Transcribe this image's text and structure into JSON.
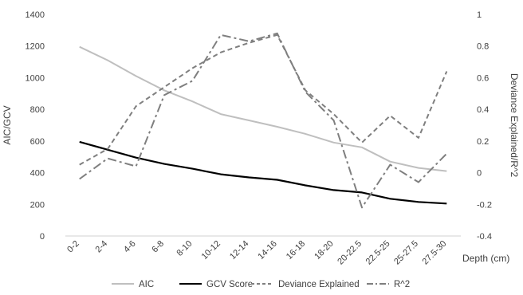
{
  "chart_data": {
    "type": "line",
    "categories": [
      "0-2",
      "2-4",
      "4-6",
      "6-8",
      "8-10",
      "10-12",
      "12-14",
      "14-16",
      "16-18",
      "18-20",
      "20-22.5",
      "22.5-25",
      "25-27.5",
      "27.5-30"
    ],
    "xlabel": "Depth (cm)",
    "ylabel": "AIC/GCV",
    "y2label": "Deviance Explained/R^2",
    "ylim": [
      0,
      1400
    ],
    "y2lim": [
      -0.4,
      1
    ],
    "yticks": [
      "0",
      "200",
      "400",
      "600",
      "800",
      "1000",
      "1200",
      "1400"
    ],
    "y2ticks": [
      "-0.4",
      "-0.2",
      "0",
      "0.2",
      "0.4",
      "0.6",
      "0.8",
      "1"
    ],
    "grid": false,
    "legend_position": "bottom",
    "series": [
      {
        "name": "AIC",
        "axis": "left",
        "color": "#bfbfbf",
        "dash": "solid",
        "values": [
          1195,
          1110,
          1010,
          920,
          850,
          770,
          730,
          690,
          645,
          590,
          560,
          470,
          430,
          410
        ]
      },
      {
        "name": "GCV Score",
        "axis": "left",
        "color": "#000000",
        "dash": "solid",
        "values": [
          595,
          545,
          495,
          455,
          425,
          390,
          370,
          355,
          320,
          290,
          275,
          235,
          215,
          205
        ]
      },
      {
        "name": "Deviance Explained",
        "axis": "right",
        "color": "#7f7f7f",
        "dash": "dash",
        "values": [
          0.05,
          0.15,
          0.42,
          0.54,
          0.66,
          0.76,
          0.82,
          0.87,
          0.52,
          0.37,
          0.19,
          0.36,
          0.22,
          0.64
        ]
      },
      {
        "name": "R^2",
        "axis": "right",
        "color": "#7f7f7f",
        "dash": "dashdot",
        "values": [
          -0.04,
          0.09,
          0.04,
          0.49,
          0.58,
          0.87,
          0.83,
          0.88,
          0.51,
          0.33,
          -0.22,
          0.05,
          -0.06,
          0.12
        ]
      }
    ]
  }
}
